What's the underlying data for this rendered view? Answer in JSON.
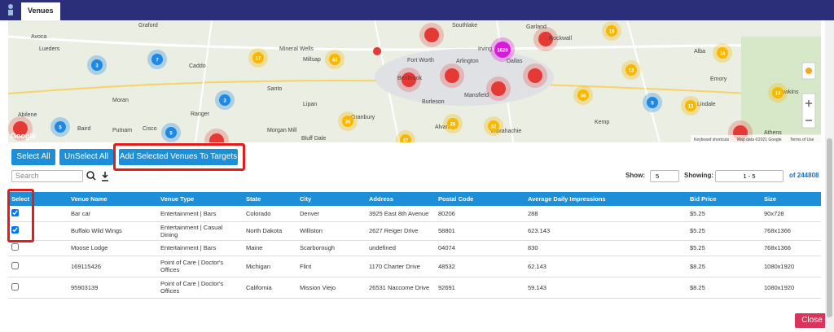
{
  "header": {
    "tab": "Venues"
  },
  "map": {
    "places": [
      "Graford",
      "Southlake",
      "Garland",
      "Rockwall",
      "Avoca",
      "Lueders",
      "Caddo",
      "Mineral Wells",
      "Millsap",
      "Fort Worth",
      "Arlington",
      "Irving",
      "Dallas",
      "Alba",
      "Emory",
      "Moran",
      "Santo",
      "Benbrook",
      "Mansfield",
      "Burleson",
      "Lipan",
      "Ranger",
      "Granbury",
      "Kemp",
      "Lindale",
      "Hawkins",
      "Abilene",
      "Baird",
      "Putnam",
      "Cisco",
      "Morgan Mill",
      "Bluff Dale",
      "Alvarado",
      "Waxahachie",
      "Athens"
    ],
    "clusters": [
      {
        "label": "3",
        "color": "#1e88e5"
      },
      {
        "label": "7",
        "color": "#1e88e5"
      },
      {
        "label": "17",
        "color": "#f9b800"
      },
      {
        "label": "43",
        "color": "#f9b800"
      },
      {
        "label": "1620",
        "color": "#d81bd8"
      },
      {
        "label": "18",
        "color": "#f9b800"
      },
      {
        "label": "14",
        "color": "#f9b800"
      },
      {
        "label": "13",
        "color": "#f9b800"
      },
      {
        "label": "36",
        "color": "#f9b800"
      },
      {
        "label": "5",
        "color": "#1e88e5"
      },
      {
        "label": "13",
        "color": "#f9b800"
      },
      {
        "label": "14",
        "color": "#f9b800"
      },
      {
        "label": "36",
        "color": "#f9b800"
      },
      {
        "label": "26",
        "color": "#f9b800"
      },
      {
        "label": "32",
        "color": "#f9b800"
      },
      {
        "label": "47",
        "color": "#f9b800"
      },
      {
        "label": "3",
        "color": "#1e88e5"
      },
      {
        "label": "5",
        "color": "#1e88e5"
      },
      {
        "label": "5",
        "color": "#1e88e5"
      }
    ],
    "logo": "Google",
    "footer": [
      "Keyboard shortcuts",
      "Map data ©2021 Google",
      "Terms of Use"
    ]
  },
  "buttons": [
    "Select All",
    "UnSelect All",
    "Add Selected Venues To Targets"
  ],
  "search": {
    "placeholder": "Search"
  },
  "paging": {
    "show_label": "Show:",
    "show_value": "5",
    "showing_label": "Showing:",
    "showing_value": "1 - 5",
    "total": "of 244808"
  },
  "table": {
    "columns": [
      "Select",
      "Venue Name",
      "Venue Type",
      "State",
      "City",
      "Address",
      "Postal Code",
      "Average Daily Impressions",
      "Bid Price",
      "Size"
    ],
    "rows": [
      {
        "checked": true,
        "cells": [
          "Bar car",
          "Entertainment | Bars",
          "Colorado",
          "Denver",
          "3925 East 8th Avenue",
          "80206",
          "288",
          "$5.25",
          "90x728"
        ]
      },
      {
        "checked": true,
        "cells": [
          "Buffalo Wild Wings",
          "Entertainment | Casual Dining",
          "North Dakota",
          "Williston",
          "2627 Reiger Drive",
          "58801",
          "623.143",
          "$5.25",
          "768x1366"
        ]
      },
      {
        "checked": false,
        "cells": [
          "Moose Lodge",
          "Entertainment | Bars",
          "Maine",
          "Scarborough",
          "undefined",
          "04074",
          "830",
          "$5.25",
          "768x1366"
        ]
      },
      {
        "checked": false,
        "cells": [
          "169115426",
          "Point of Care | Doctor's Offices",
          "Michigan",
          "Flint",
          "1170 Charter Drive",
          "48532",
          "62.143",
          "$8.25",
          "1080x1920"
        ]
      },
      {
        "checked": false,
        "cells": [
          "95903139",
          "Point of Care | Doctor's Offices",
          "California",
          "Mission Viejo",
          "26531 Naccome Drive",
          "92691",
          "59.143",
          "$8.25",
          "1080x1920"
        ]
      }
    ]
  },
  "close": "Close"
}
